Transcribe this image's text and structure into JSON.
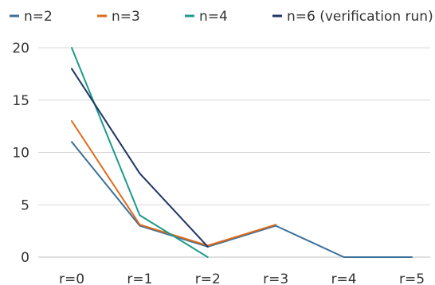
{
  "chart_data": {
    "type": "line",
    "title": "",
    "xlabel": "",
    "ylabel": "",
    "categories": [
      "r=0",
      "r=1",
      "r=2",
      "r=3",
      "r=4",
      "r=5"
    ],
    "ylim": [
      0,
      20
    ],
    "yticks": [
      0,
      5,
      10,
      15,
      20
    ],
    "grid": true,
    "legend_position": "top",
    "series": [
      {
        "name": "n=2",
        "color": "#3b6f99",
        "values": [
          11,
          3,
          1,
          3,
          0,
          0
        ]
      },
      {
        "name": "n=3",
        "color": "#e06a1b",
        "values": [
          13,
          3.1,
          1.1,
          3.1,
          null,
          null
        ]
      },
      {
        "name": "n=4",
        "color": "#1e9a8a",
        "values": [
          20,
          4,
          0,
          null,
          null,
          null
        ]
      },
      {
        "name": "n=6 (verification run)",
        "color": "#1f3566",
        "values": [
          18,
          8,
          1,
          null,
          null,
          null
        ]
      }
    ]
  }
}
